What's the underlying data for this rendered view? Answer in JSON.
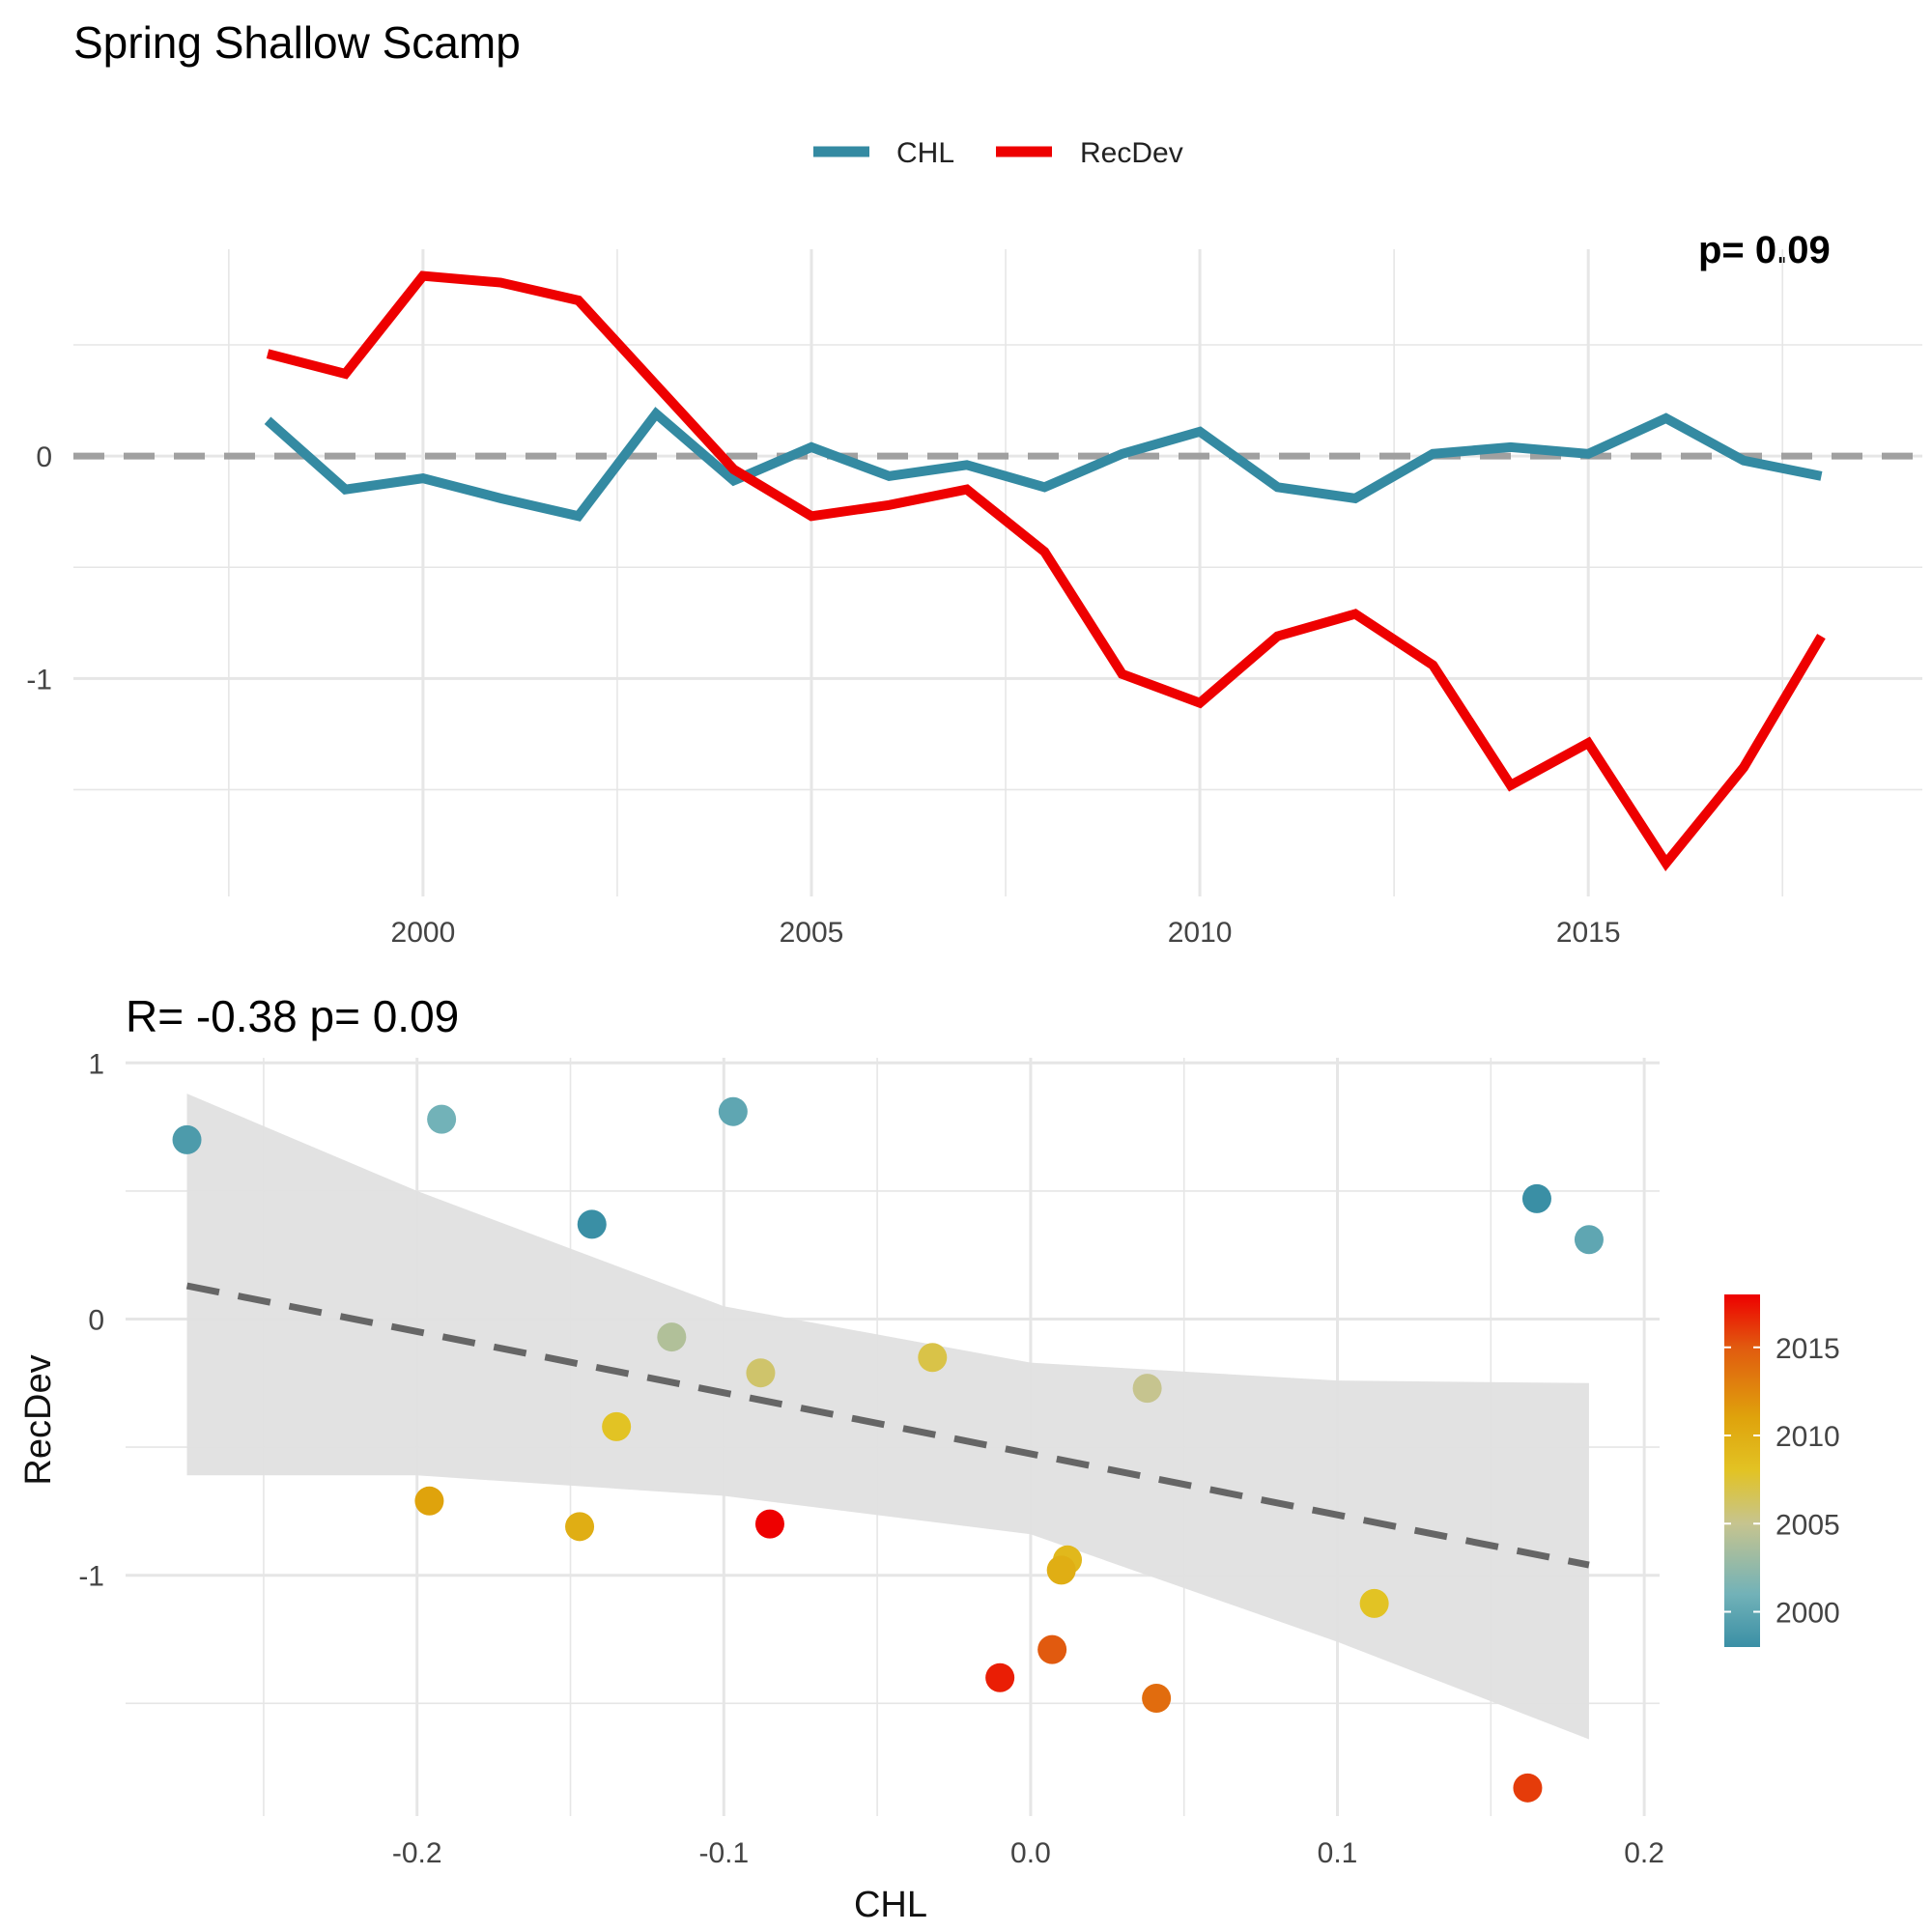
{
  "title": "Spring Shallow Scamp",
  "colors": {
    "chl": "#348AA2",
    "recdev": "#EE0000",
    "grid": "#E6E6E6",
    "zero": "#A0A0A0",
    "ribbon": "#E0E0E0",
    "fit": "#666666"
  },
  "chart_data": [
    {
      "type": "line",
      "legend": {
        "placement": "top",
        "entries": [
          "CHL",
          "RecDev"
        ]
      },
      "annotation": "p= 0.09",
      "x": [
        1998,
        1999,
        2000,
        2001,
        2002,
        2003,
        2004,
        2005,
        2006,
        2007,
        2008,
        2009,
        2010,
        2011,
        2012,
        2013,
        2014,
        2015,
        2016,
        2017,
        2018
      ],
      "xticks": [
        "2000",
        "2005",
        "2010",
        "2015"
      ],
      "xlim": [
        1995.5,
        2019.3
      ],
      "ylim": [
        -1.98,
        0.93
      ],
      "yticks": [
        "0",
        "-1"
      ],
      "hline": 0,
      "grid": true,
      "series": [
        {
          "name": "CHL",
          "color": "#348AA2",
          "values": [
            0.16,
            -0.15,
            -0.1,
            -0.19,
            -0.27,
            0.19,
            -0.11,
            0.04,
            -0.09,
            -0.04,
            -0.14,
            0.01,
            0.11,
            -0.14,
            -0.19,
            0.01,
            0.04,
            0.01,
            0.17,
            -0.02,
            -0.09
          ]
        },
        {
          "name": "RecDev",
          "color": "#EE0000",
          "values": [
            0.46,
            0.37,
            0.81,
            0.78,
            0.7,
            0.32,
            -0.06,
            -0.27,
            -0.22,
            -0.15,
            -0.43,
            -0.98,
            -1.11,
            -0.81,
            -0.71,
            -0.94,
            -1.48,
            -1.29,
            -1.83,
            -1.4,
            -0.81
          ]
        }
      ]
    },
    {
      "type": "scatter",
      "subtitle": "R= -0.38  p= 0.09",
      "xlabel": "CHL",
      "ylabel": "RecDev",
      "xlim": [
        -0.295,
        0.205
      ],
      "ylim": [
        -1.94,
        1.02
      ],
      "xticks": [
        "-0.2",
        "-0.1",
        "0.0",
        "0.1",
        "0.2"
      ],
      "yticks": [
        "1",
        "0",
        "-1"
      ],
      "grid": true,
      "points": [
        {
          "x": -0.275,
          "y": 0.7,
          "year": 1999
        },
        {
          "x": -0.192,
          "y": 0.78,
          "year": 2001
        },
        {
          "x": -0.097,
          "y": 0.81,
          "year": 2000
        },
        {
          "x": -0.143,
          "y": 0.37,
          "year": 1998
        },
        {
          "x": 0.165,
          "y": 0.47,
          "year": 1998
        },
        {
          "x": 0.182,
          "y": 0.31,
          "year": 2000
        },
        {
          "x": -0.117,
          "y": -0.07,
          "year": 2004
        },
        {
          "x": -0.088,
          "y": -0.21,
          "year": 2006
        },
        {
          "x": -0.032,
          "y": -0.15,
          "year": 2007
        },
        {
          "x": 0.038,
          "y": -0.27,
          "year": 2005
        },
        {
          "x": -0.135,
          "y": -0.42,
          "year": 2008
        },
        {
          "x": -0.196,
          "y": -0.71,
          "year": 2011
        },
        {
          "x": -0.147,
          "y": -0.81,
          "year": 2010
        },
        {
          "x": -0.085,
          "y": -0.8,
          "year": 2018
        },
        {
          "x": 0.012,
          "y": -0.94,
          "year": 2009
        },
        {
          "x": 0.01,
          "y": -0.98,
          "year": 2010
        },
        {
          "x": 0.112,
          "y": -1.11,
          "year": 2008
        },
        {
          "x": -0.01,
          "y": -1.4,
          "year": 2017
        },
        {
          "x": 0.007,
          "y": -1.29,
          "year": 2015
        },
        {
          "x": 0.041,
          "y": -1.48,
          "year": 2014
        },
        {
          "x": 0.162,
          "y": -1.83,
          "year": 2016
        }
      ],
      "fit": {
        "x": [
          -0.275,
          0.182
        ],
        "y": [
          0.13,
          -0.96
        ]
      },
      "band": {
        "x": [
          -0.275,
          -0.2,
          -0.1,
          0.0,
          0.1,
          0.182
        ],
        "upper": [
          0.88,
          0.5,
          0.05,
          -0.17,
          -0.24,
          -0.25
        ],
        "lower": [
          -0.61,
          -0.61,
          -0.69,
          -0.84,
          -1.26,
          -1.64
        ]
      },
      "colorbar": {
        "label_ticks": [
          "2015",
          "2010",
          "2005",
          "2000"
        ],
        "range": [
          1998,
          2018
        ],
        "stops": [
          {
            "year": 1998,
            "color": "#3A8FA5"
          },
          {
            "year": 2001,
            "color": "#72B2B8"
          },
          {
            "year": 2005,
            "color": "#C6C48F"
          },
          {
            "year": 2008,
            "color": "#E2C324"
          },
          {
            "year": 2011,
            "color": "#DFA30C"
          },
          {
            "year": 2015,
            "color": "#E15A0F"
          },
          {
            "year": 2018,
            "color": "#EE0000"
          }
        ]
      }
    }
  ]
}
